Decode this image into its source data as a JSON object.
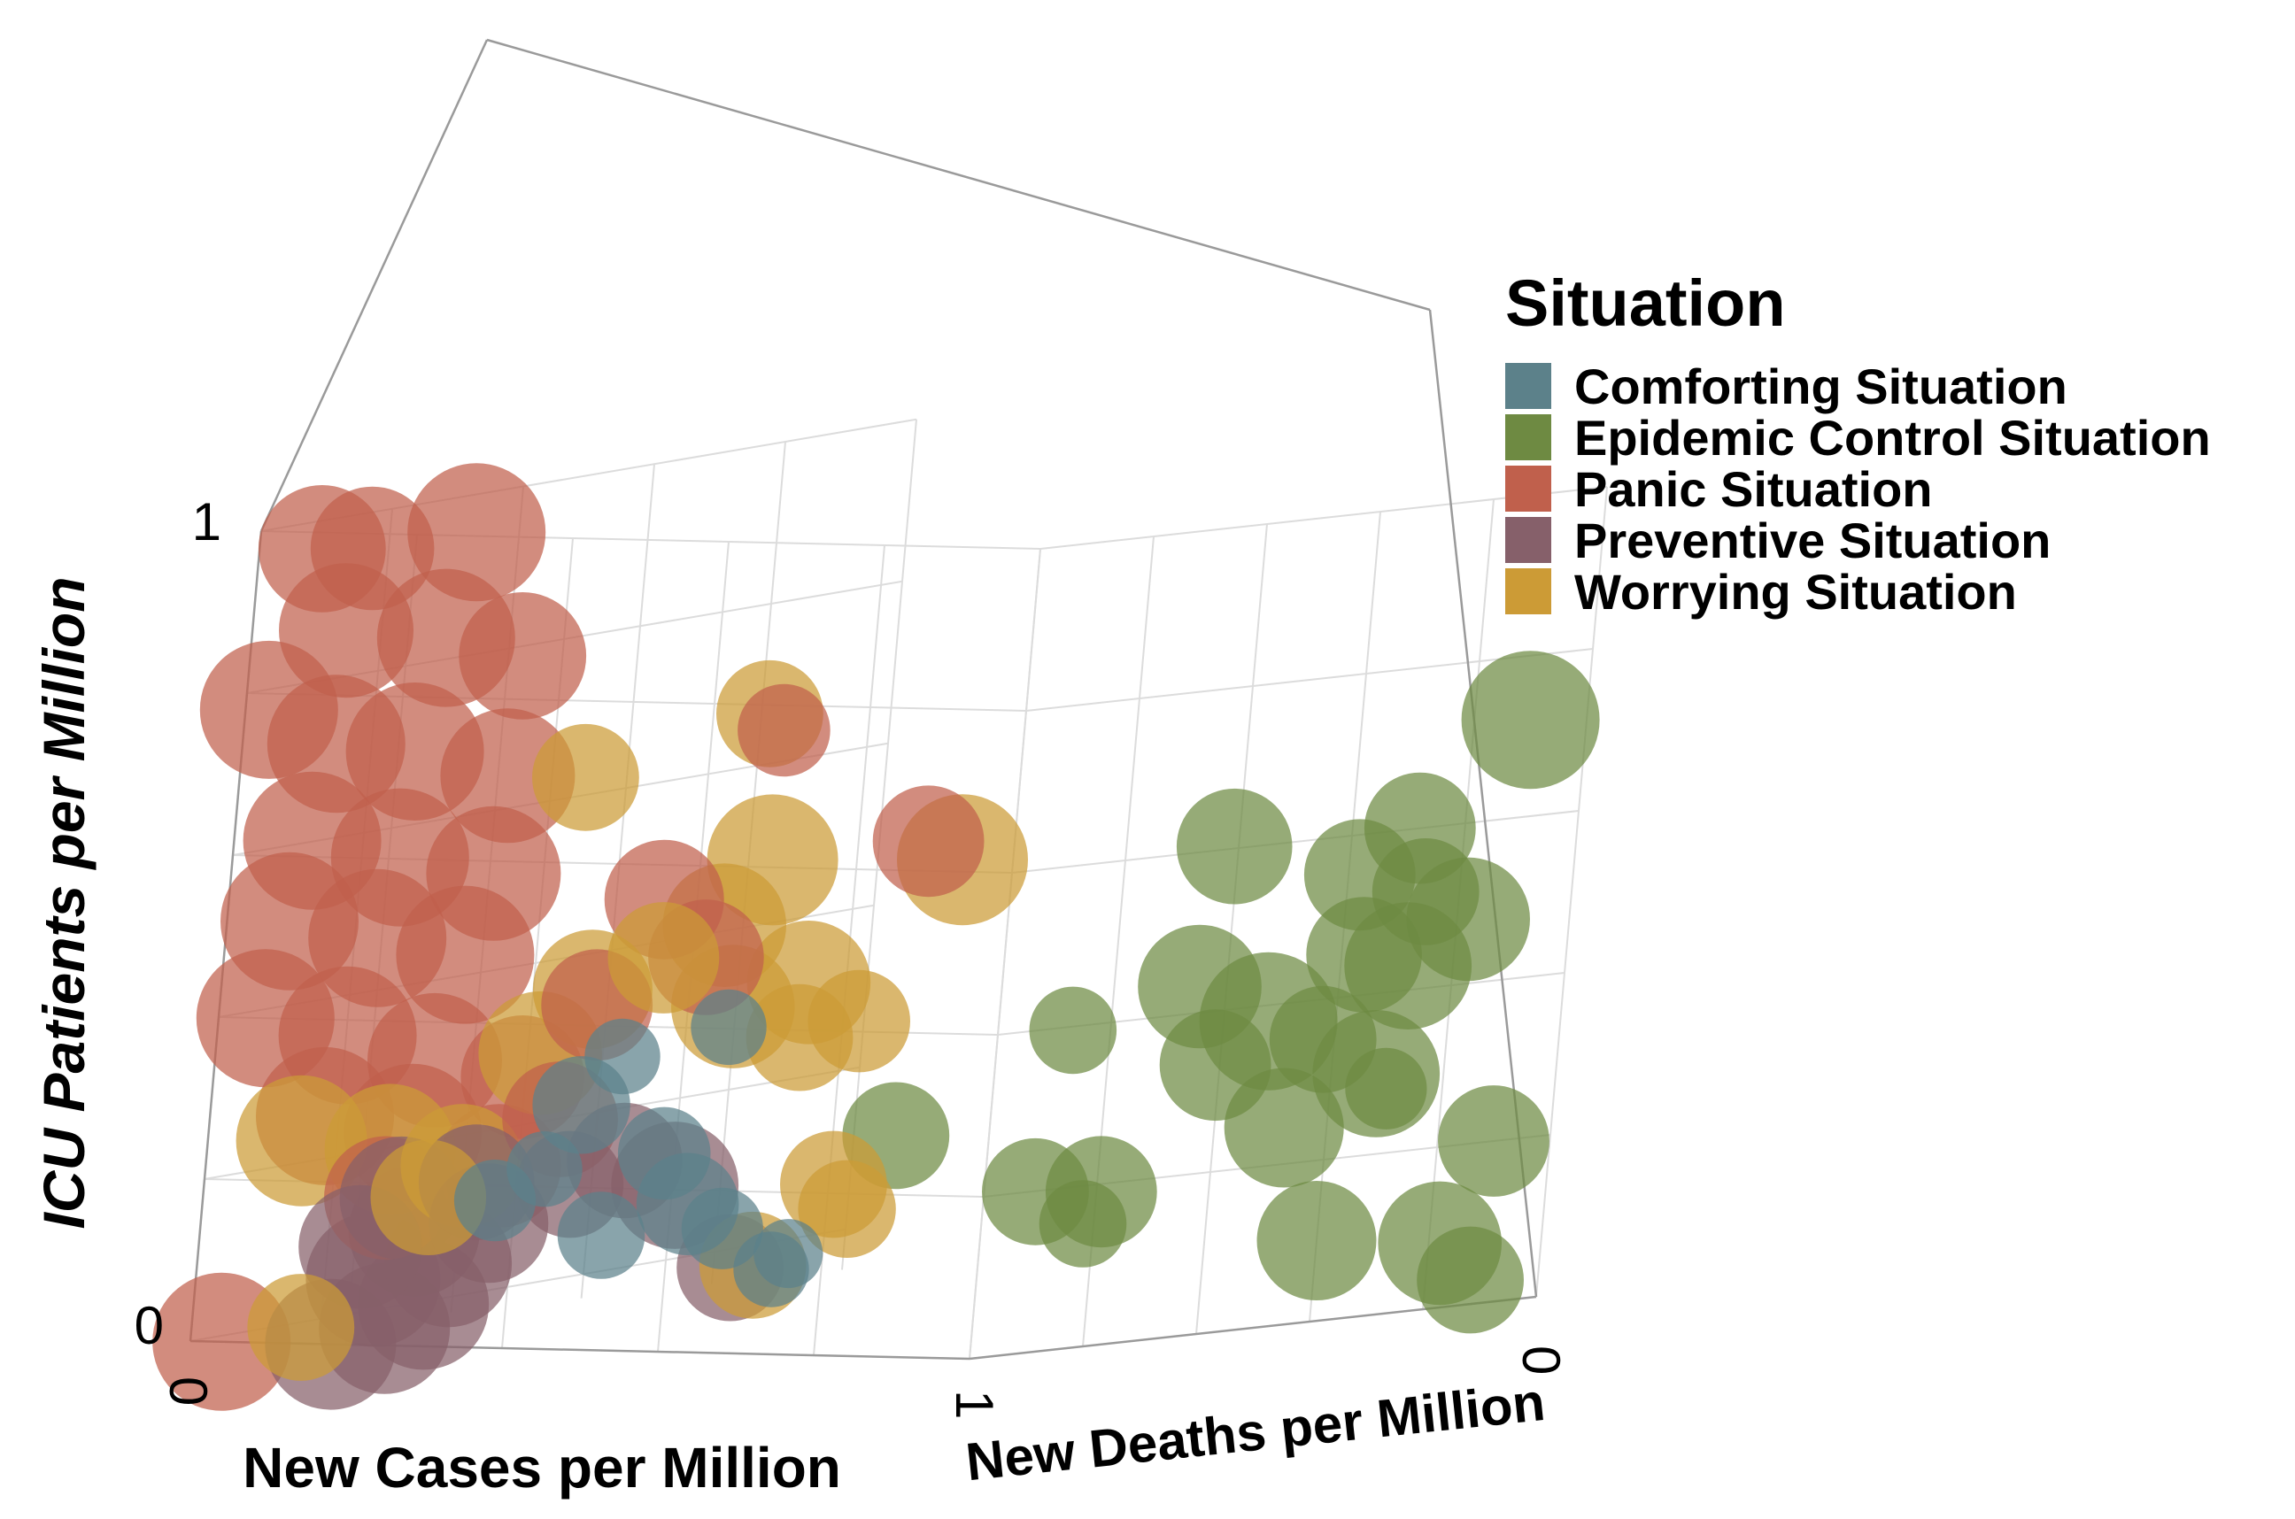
{
  "chart_data": {
    "type": "scatter",
    "subtype": "3d-bubble",
    "axes": {
      "x": {
        "label": "New Cases per Million",
        "range": [
          0,
          1
        ],
        "ticks": [
          "0",
          "1"
        ]
      },
      "y": {
        "label": "New Deaths per Million",
        "range": [
          0,
          1
        ],
        "ticks": [
          "1",
          "0"
        ]
      },
      "z": {
        "label": "ICU Patients per Million",
        "range": [
          0,
          1
        ],
        "ticks": [
          "0",
          "1"
        ]
      }
    },
    "grid": true,
    "legend": {
      "title": "Situation",
      "position": "right"
    },
    "series": [
      {
        "name": "Comforting Situation",
        "color": "#5C818A",
        "points": [
          {
            "x": 0.46,
            "y": 0.02,
            "z": 0.3,
            "s": 0.5
          },
          {
            "x": 0.55,
            "y": 0.05,
            "z": 0.24,
            "s": 0.45
          },
          {
            "x": 0.6,
            "y": 0.03,
            "z": 0.18,
            "s": 0.55
          },
          {
            "x": 0.5,
            "y": 0.02,
            "z": 0.14,
            "s": 0.4
          },
          {
            "x": 0.64,
            "y": 0.04,
            "z": 0.15,
            "s": 0.35
          },
          {
            "x": 0.36,
            "y": 0.02,
            "z": 0.18,
            "s": 0.35
          },
          {
            "x": 0.42,
            "y": 0.02,
            "z": 0.22,
            "s": 0.3
          },
          {
            "x": 0.7,
            "y": 0.05,
            "z": 0.1,
            "s": 0.3
          },
          {
            "x": 0.72,
            "y": 0.05,
            "z": 0.12,
            "s": 0.25
          },
          {
            "x": 0.5,
            "y": 0.03,
            "z": 0.36,
            "s": 0.3
          },
          {
            "x": 0.64,
            "y": 0.02,
            "z": 0.4,
            "s": 0.3
          }
        ]
      },
      {
        "name": "Epidemic Control Situation",
        "color": "#6E8A42",
        "points": [
          {
            "x": 0.98,
            "y": 0.38,
            "z": 0.43,
            "s": 0.8
          },
          {
            "x": 1.0,
            "y": 0.48,
            "z": 0.38,
            "s": 1.0
          },
          {
            "x": 0.98,
            "y": 0.42,
            "z": 0.33,
            "s": 0.65
          },
          {
            "x": 1.0,
            "y": 0.58,
            "z": 0.35,
            "s": 0.6
          },
          {
            "x": 1.0,
            "y": 0.64,
            "z": 0.45,
            "s": 0.7
          },
          {
            "x": 1.0,
            "y": 0.72,
            "z": 0.43,
            "s": 0.85
          },
          {
            "x": 1.0,
            "y": 0.68,
            "z": 0.3,
            "s": 0.85
          },
          {
            "x": 1.0,
            "y": 0.82,
            "z": 0.48,
            "s": 0.8
          },
          {
            "x": 0.96,
            "y": 0.58,
            "z": 0.24,
            "s": 0.75
          },
          {
            "x": 1.0,
            "y": 0.6,
            "z": 0.1,
            "s": 0.75
          },
          {
            "x": 1.0,
            "y": 0.82,
            "z": 0.08,
            "s": 0.8
          },
          {
            "x": 1.0,
            "y": 0.9,
            "z": 0.2,
            "s": 0.65
          },
          {
            "x": 1.0,
            "y": 0.88,
            "z": 0.03,
            "s": 0.6
          },
          {
            "x": 1.0,
            "y": 0.7,
            "z": 0.28,
            "s": 0.35
          },
          {
            "x": 1.0,
            "y": 0.62,
            "z": 0.55,
            "s": 0.65
          },
          {
            "x": 1.0,
            "y": 0.72,
            "z": 0.6,
            "s": 0.65
          },
          {
            "x": 1.0,
            "y": 0.74,
            "z": 0.52,
            "s": 0.6
          },
          {
            "x": 0.98,
            "y": 0.42,
            "z": 0.6,
            "s": 0.7
          },
          {
            "x": 1.0,
            "y": 0.9,
            "z": 0.72,
            "s": 1.0
          },
          {
            "x": 0.88,
            "y": 0.3,
            "z": 0.38,
            "s": 0.4
          },
          {
            "x": 0.85,
            "y": 0.3,
            "z": 0.18,
            "s": 0.6
          },
          {
            "x": 0.92,
            "y": 0.32,
            "z": 0.18,
            "s": 0.65
          },
          {
            "x": 0.9,
            "y": 0.32,
            "z": 0.14,
            "s": 0.4
          },
          {
            "x": 0.78,
            "y": 0.14,
            "z": 0.26,
            "s": 0.6
          }
        ]
      },
      {
        "name": "Panic Situation",
        "color": "#C0604C",
        "points": [
          {
            "x": 0.04,
            "y": 0.0,
            "z": 0.0,
            "s": 1.0
          },
          {
            "x": 0.08,
            "y": 0.0,
            "z": 0.98,
            "s": 0.85
          },
          {
            "x": 0.13,
            "y": 0.02,
            "z": 0.98,
            "s": 0.8
          },
          {
            "x": 0.24,
            "y": 0.05,
            "z": 1.0,
            "s": 1.0
          },
          {
            "x": 0.12,
            "y": 0.0,
            "z": 0.88,
            "s": 0.95
          },
          {
            "x": 0.22,
            "y": 0.04,
            "z": 0.87,
            "s": 1.0
          },
          {
            "x": 0.03,
            "y": 0.0,
            "z": 0.78,
            "s": 1.0
          },
          {
            "x": 0.12,
            "y": 0.0,
            "z": 0.74,
            "s": 1.0
          },
          {
            "x": 0.2,
            "y": 0.03,
            "z": 0.73,
            "s": 1.0
          },
          {
            "x": 0.3,
            "y": 0.06,
            "z": 0.7,
            "s": 0.95
          },
          {
            "x": 0.1,
            "y": 0.0,
            "z": 0.62,
            "s": 1.0
          },
          {
            "x": 0.2,
            "y": 0.02,
            "z": 0.6,
            "s": 1.0
          },
          {
            "x": 0.3,
            "y": 0.05,
            "z": 0.58,
            "s": 0.95
          },
          {
            "x": 0.08,
            "y": 0.0,
            "z": 0.52,
            "s": 1.0
          },
          {
            "x": 0.18,
            "y": 0.02,
            "z": 0.5,
            "s": 1.0
          },
          {
            "x": 0.28,
            "y": 0.04,
            "z": 0.48,
            "s": 1.0
          },
          {
            "x": 0.06,
            "y": 0.0,
            "z": 0.4,
            "s": 1.0
          },
          {
            "x": 0.16,
            "y": 0.01,
            "z": 0.38,
            "s": 1.0
          },
          {
            "x": 0.26,
            "y": 0.03,
            "z": 0.35,
            "s": 0.95
          },
          {
            "x": 0.36,
            "y": 0.05,
            "z": 0.33,
            "s": 0.8
          },
          {
            "x": 0.42,
            "y": 0.04,
            "z": 0.28,
            "s": 0.7
          },
          {
            "x": 0.14,
            "y": 0.01,
            "z": 0.28,
            "s": 1.0
          },
          {
            "x": 0.24,
            "y": 0.03,
            "z": 0.26,
            "s": 1.0
          },
          {
            "x": 0.34,
            "y": 0.05,
            "z": 0.22,
            "s": 0.8
          },
          {
            "x": 0.22,
            "y": 0.02,
            "z": 0.18,
            "s": 0.8
          },
          {
            "x": 0.5,
            "y": 0.08,
            "z": 0.55,
            "s": 0.75
          },
          {
            "x": 0.56,
            "y": 0.08,
            "z": 0.48,
            "s": 0.7
          },
          {
            "x": 0.44,
            "y": 0.06,
            "z": 0.42,
            "s": 0.65
          },
          {
            "x": 0.62,
            "y": 0.1,
            "z": 0.76,
            "s": 0.45
          },
          {
            "x": 0.76,
            "y": 0.18,
            "z": 0.62,
            "s": 0.65
          },
          {
            "x": 0.32,
            "y": 0.04,
            "z": 0.85,
            "s": 0.85
          }
        ]
      },
      {
        "name": "Preventive Situation",
        "color": "#86606A",
        "points": [
          {
            "x": 0.18,
            "y": 0.0,
            "z": 0.0,
            "s": 0.9
          },
          {
            "x": 0.24,
            "y": 0.01,
            "z": 0.02,
            "s": 0.9
          },
          {
            "x": 0.28,
            "y": 0.02,
            "z": 0.05,
            "s": 0.9
          },
          {
            "x": 0.22,
            "y": 0.01,
            "z": 0.08,
            "s": 0.95
          },
          {
            "x": 0.3,
            "y": 0.03,
            "z": 0.1,
            "s": 0.85
          },
          {
            "x": 0.26,
            "y": 0.02,
            "z": 0.14,
            "s": 0.9
          },
          {
            "x": 0.34,
            "y": 0.04,
            "z": 0.15,
            "s": 0.75
          },
          {
            "x": 0.24,
            "y": 0.02,
            "z": 0.18,
            "s": 0.8
          },
          {
            "x": 0.32,
            "y": 0.04,
            "z": 0.2,
            "s": 0.7
          },
          {
            "x": 0.2,
            "y": 0.01,
            "z": 0.12,
            "s": 0.8
          },
          {
            "x": 0.5,
            "y": 0.05,
            "z": 0.23,
            "s": 0.7
          },
          {
            "x": 0.56,
            "y": 0.06,
            "z": 0.2,
            "s": 0.85
          },
          {
            "x": 0.44,
            "y": 0.04,
            "z": 0.2,
            "s": 0.6
          },
          {
            "x": 0.64,
            "y": 0.06,
            "z": 0.1,
            "s": 0.6
          }
        ]
      },
      {
        "name": "Worrying Situation",
        "color": "#CC9B36",
        "points": [
          {
            "x": 0.14,
            "y": 0.0,
            "z": 0.02,
            "s": 0.6
          },
          {
            "x": 0.12,
            "y": 0.0,
            "z": 0.25,
            "s": 0.9
          },
          {
            "x": 0.22,
            "y": 0.02,
            "z": 0.24,
            "s": 0.9
          },
          {
            "x": 0.3,
            "y": 0.04,
            "z": 0.22,
            "s": 0.8
          },
          {
            "x": 0.26,
            "y": 0.04,
            "z": 0.18,
            "s": 0.7
          },
          {
            "x": 0.38,
            "y": 0.05,
            "z": 0.36,
            "s": 0.8
          },
          {
            "x": 0.44,
            "y": 0.05,
            "z": 0.44,
            "s": 0.75
          },
          {
            "x": 0.52,
            "y": 0.06,
            "z": 0.48,
            "s": 0.65
          },
          {
            "x": 0.58,
            "y": 0.08,
            "z": 0.52,
            "s": 0.8
          },
          {
            "x": 0.6,
            "y": 0.08,
            "z": 0.42,
            "s": 0.8
          },
          {
            "x": 0.68,
            "y": 0.1,
            "z": 0.45,
            "s": 0.8
          },
          {
            "x": 0.66,
            "y": 0.12,
            "z": 0.38,
            "s": 0.6
          },
          {
            "x": 0.72,
            "y": 0.14,
            "z": 0.4,
            "s": 0.55
          },
          {
            "x": 0.62,
            "y": 0.1,
            "z": 0.6,
            "s": 0.9
          },
          {
            "x": 0.82,
            "y": 0.16,
            "z": 0.6,
            "s": 0.9
          },
          {
            "x": 0.6,
            "y": 0.1,
            "z": 0.78,
            "s": 0.6
          },
          {
            "x": 0.64,
            "y": 0.1,
            "z": 0.1,
            "s": 0.6
          },
          {
            "x": 0.72,
            "y": 0.12,
            "z": 0.2,
            "s": 0.6
          },
          {
            "x": 0.74,
            "y": 0.12,
            "z": 0.17,
            "s": 0.5
          },
          {
            "x": 0.4,
            "y": 0.06,
            "z": 0.7,
            "s": 0.6
          }
        ]
      }
    ]
  }
}
